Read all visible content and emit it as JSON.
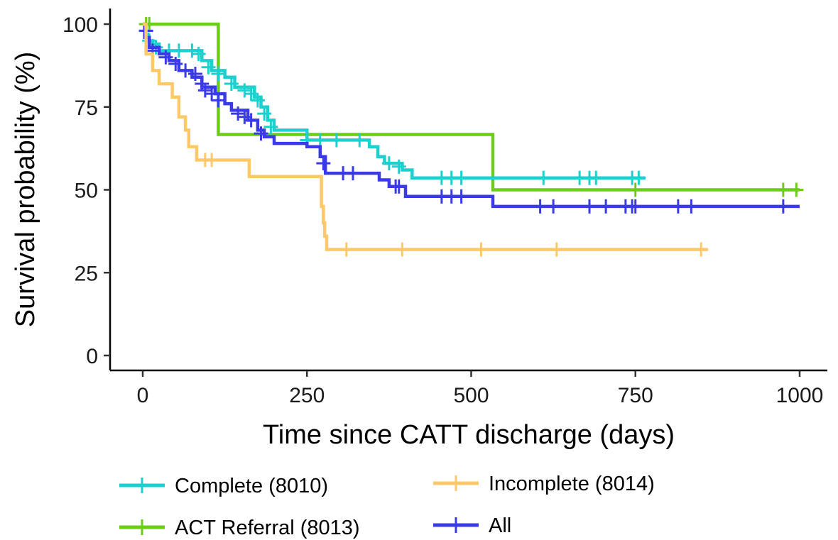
{
  "chart_data": {
    "type": "line",
    "subtype": "kaplan-meier-step",
    "title": "",
    "xlabel": "Time since CATT discharge (days)",
    "ylabel": "Survival probability (%)",
    "xlim": [
      0,
      1000
    ],
    "ylim": [
      0,
      100
    ],
    "xticks": [
      0,
      250,
      500,
      750,
      1000
    ],
    "yticks": [
      0,
      25,
      50,
      75,
      100
    ],
    "grid": false,
    "legend_position": "bottom",
    "series": [
      {
        "name": "Complete (8010)",
        "color": "#1ecfcf",
        "steps": [
          [
            0,
            100
          ],
          [
            3,
            97
          ],
          [
            8,
            95
          ],
          [
            15,
            94
          ],
          [
            25,
            92
          ],
          [
            70,
            92
          ],
          [
            90,
            89
          ],
          [
            105,
            86
          ],
          [
            125,
            84
          ],
          [
            140,
            81
          ],
          [
            170,
            78
          ],
          [
            180,
            75
          ],
          [
            190,
            71
          ],
          [
            200,
            68
          ],
          [
            250,
            65
          ],
          [
            345,
            63
          ],
          [
            358,
            60
          ],
          [
            368,
            58
          ],
          [
            395,
            56
          ],
          [
            410,
            53.6
          ],
          [
            765,
            53.6
          ]
        ],
        "censored": [
          [
            5,
            98
          ],
          [
            10,
            95
          ],
          [
            20,
            93
          ],
          [
            40,
            92
          ],
          [
            55,
            92
          ],
          [
            75,
            92
          ],
          [
            85,
            91
          ],
          [
            100,
            87
          ],
          [
            115,
            85
          ],
          [
            135,
            82
          ],
          [
            155,
            80
          ],
          [
            165,
            79
          ],
          [
            175,
            77
          ],
          [
            185,
            73
          ],
          [
            195,
            69
          ],
          [
            250,
            65
          ],
          [
            270,
            65
          ],
          [
            295,
            65
          ],
          [
            330,
            65
          ],
          [
            375,
            58
          ],
          [
            390,
            57
          ],
          [
            455,
            53.6
          ],
          [
            470,
            53.6
          ],
          [
            485,
            53.6
          ],
          [
            610,
            53.6
          ],
          [
            665,
            53.6
          ],
          [
            680,
            53.6
          ],
          [
            690,
            53.6
          ],
          [
            745,
            53.6
          ],
          [
            755,
            53.6
          ]
        ]
      },
      {
        "name": "ACT Referral (8013)",
        "color": "#6ccc1a",
        "steps": [
          [
            0,
            100
          ],
          [
            110,
            100
          ],
          [
            115,
            66.7
          ],
          [
            533,
            66.7
          ],
          [
            533,
            50
          ],
          [
            1000,
            50
          ]
        ],
        "censored": [
          [
            5,
            100
          ],
          [
            10,
            100
          ],
          [
            750,
            50
          ],
          [
            975,
            50
          ],
          [
            995,
            50
          ]
        ]
      },
      {
        "name": "Incomplete (8014)",
        "color": "#fdc86a",
        "steps": [
          [
            0,
            100
          ],
          [
            5,
            91
          ],
          [
            15,
            86
          ],
          [
            25,
            82
          ],
          [
            45,
            78
          ],
          [
            55,
            72
          ],
          [
            65,
            68
          ],
          [
            70,
            63
          ],
          [
            82,
            59
          ],
          [
            160,
            59
          ],
          [
            162,
            54
          ],
          [
            270,
            54
          ],
          [
            272,
            45
          ],
          [
            275,
            40
          ],
          [
            277,
            36
          ],
          [
            280,
            32
          ],
          [
            860,
            32
          ]
        ],
        "censored": [
          [
            95,
            59
          ],
          [
            105,
            59
          ],
          [
            310,
            32
          ],
          [
            395,
            32
          ],
          [
            515,
            32
          ],
          [
            630,
            32
          ],
          [
            850,
            32
          ]
        ]
      },
      {
        "name": "All",
        "color": "#3a3ae6",
        "steps": [
          [
            0,
            100
          ],
          [
            3,
            96
          ],
          [
            10,
            93
          ],
          [
            25,
            91
          ],
          [
            40,
            89
          ],
          [
            55,
            86
          ],
          [
            75,
            84
          ],
          [
            90,
            81
          ],
          [
            110,
            79
          ],
          [
            125,
            76
          ],
          [
            135,
            74
          ],
          [
            160,
            71
          ],
          [
            175,
            68
          ],
          [
            185,
            66
          ],
          [
            200,
            64
          ],
          [
            250,
            63
          ],
          [
            270,
            60
          ],
          [
            278,
            55
          ],
          [
            360,
            53
          ],
          [
            375,
            51
          ],
          [
            400,
            48
          ],
          [
            533,
            48
          ],
          [
            533,
            45
          ],
          [
            1000,
            45
          ]
        ],
        "censored": [
          [
            5,
            98
          ],
          [
            15,
            92
          ],
          [
            35,
            90
          ],
          [
            50,
            88
          ],
          [
            65,
            86
          ],
          [
            80,
            85
          ],
          [
            90,
            82
          ],
          [
            95,
            80
          ],
          [
            105,
            79
          ],
          [
            115,
            77
          ],
          [
            145,
            73
          ],
          [
            155,
            72
          ],
          [
            165,
            71
          ],
          [
            180,
            67
          ],
          [
            275,
            58
          ],
          [
            305,
            55
          ],
          [
            320,
            55
          ],
          [
            385,
            51
          ],
          [
            390,
            51
          ],
          [
            455,
            48
          ],
          [
            470,
            48
          ],
          [
            485,
            48
          ],
          [
            605,
            45
          ],
          [
            625,
            45
          ],
          [
            680,
            45
          ],
          [
            705,
            45
          ],
          [
            735,
            45
          ],
          [
            745,
            45
          ],
          [
            750,
            45
          ],
          [
            815,
            45
          ],
          [
            835,
            45
          ],
          [
            975,
            45
          ]
        ]
      }
    ],
    "legend": [
      {
        "label": "Complete (8010)",
        "color": "#1ecfcf"
      },
      {
        "label": "Incomplete (8014)",
        "color": "#fdc86a"
      },
      {
        "label": "ACT Referral (8013)",
        "color": "#6ccc1a"
      },
      {
        "label": "All",
        "color": "#3a3ae6"
      }
    ]
  }
}
